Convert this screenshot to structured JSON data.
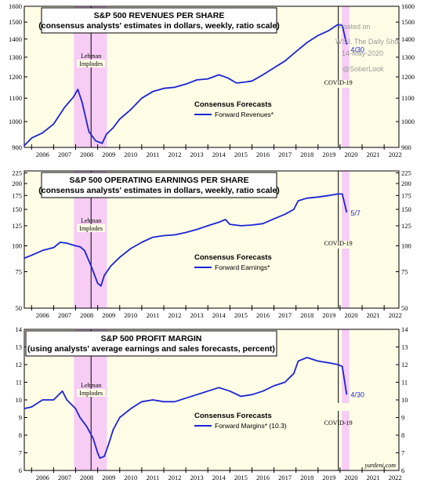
{
  "watermark": {
    "lines": [
      "Posted on",
      "WSJ. The Daily Shot",
      "14-May-2020",
      "@SoberLook"
    ]
  },
  "source": "yardeni.com",
  "colors": {
    "panel_bg": "#fffde6",
    "recession": "#f7cdf5",
    "line": "#1b24d6",
    "axis": "#000000"
  },
  "chart_data": [
    {
      "type": "line",
      "title": "S&P 500 REVENUES PER SHARE",
      "subtitle": "(consensus analysts' estimates in dollars, weekly, ratio scale)",
      "x_ticks": [
        "2006",
        "2007",
        "2008",
        "2009",
        "2010",
        "2011",
        "2012",
        "2013",
        "2014",
        "2015",
        "2016",
        "2017",
        "2018",
        "2019",
        "2020",
        "2021",
        "2022"
      ],
      "y_ticks": [
        900,
        1000,
        1100,
        1200,
        1300,
        1400,
        1500,
        1600
      ],
      "ylim": [
        900,
        1600
      ],
      "yscale": "log",
      "legend": {
        "heading": "Consensus Forecasts",
        "series": "Forward Revenues*"
      },
      "annotations": [
        "Lehman",
        "Implodes",
        "COVID-19"
      ],
      "end_label": "4/30",
      "series": [
        {
          "name": "Forward Revenues*",
          "x": [
            2005.65,
            2006.0,
            2006.5,
            2007.0,
            2007.5,
            2007.9,
            2008.1,
            2008.3,
            2008.6,
            2008.9,
            2009.2,
            2009.4,
            2009.7,
            2010.0,
            2010.5,
            2011.0,
            2011.5,
            2012.0,
            2012.5,
            2013.0,
            2013.5,
            2014.0,
            2014.5,
            2014.9,
            2015.3,
            2015.7,
            2016.0,
            2016.5,
            2017.0,
            2017.5,
            2018.0,
            2018.5,
            2019.0,
            2019.5,
            2019.9,
            2020.1,
            2020.3
          ],
          "y": [
            905,
            935,
            955,
            990,
            1060,
            1105,
            1140,
            1080,
            960,
            925,
            915,
            950,
            975,
            1010,
            1050,
            1100,
            1130,
            1145,
            1150,
            1165,
            1185,
            1190,
            1210,
            1195,
            1170,
            1175,
            1180,
            1210,
            1245,
            1280,
            1330,
            1380,
            1420,
            1450,
            1485,
            1480,
            1370
          ]
        }
      ]
    },
    {
      "type": "line",
      "title": "S&P 500 OPERATING EARNINGS PER SHARE",
      "subtitle": "(consensus analysts' estimates in dollars, weekly, ratio scale)",
      "x_ticks": [
        "2006",
        "2007",
        "2008",
        "2009",
        "2010",
        "2011",
        "2012",
        "2013",
        "2014",
        "2015",
        "2016",
        "2017",
        "2018",
        "2019",
        "2020",
        "2021",
        "2022"
      ],
      "y_ticks": [
        50,
        75,
        100,
        125,
        150,
        175,
        200,
        225
      ],
      "ylim": [
        50,
        230
      ],
      "yscale": "log",
      "legend": {
        "heading": "Consensus Forecasts",
        "series": "Forward Earnings*"
      },
      "annotations": [
        "Lehman",
        "Implodes",
        "COVID-19"
      ],
      "end_label": "5/7",
      "series": [
        {
          "name": "Forward Earnings*",
          "x": [
            2005.65,
            2006.0,
            2006.5,
            2007.0,
            2007.3,
            2007.6,
            2008.0,
            2008.2,
            2008.4,
            2008.7,
            2009.0,
            2009.15,
            2009.3,
            2009.6,
            2010.0,
            2010.5,
            2011.0,
            2011.5,
            2012.0,
            2012.5,
            2013.0,
            2013.5,
            2014.0,
            2014.5,
            2014.8,
            2015.0,
            2015.5,
            2016.0,
            2016.5,
            2017.0,
            2017.5,
            2017.9,
            2018.1,
            2018.5,
            2019.0,
            2019.5,
            2019.9,
            2020.1,
            2020.3
          ],
          "y": [
            87,
            90,
            95,
            98,
            104,
            103,
            100,
            99,
            95,
            80,
            66,
            64,
            72,
            80,
            88,
            97,
            104,
            110,
            112,
            113,
            116,
            120,
            125,
            130,
            134,
            127,
            125,
            126,
            128,
            135,
            142,
            150,
            165,
            170,
            172,
            175,
            178,
            178,
            145
          ]
        }
      ]
    },
    {
      "type": "line",
      "title": "S&P 500 PROFIT MARGIN",
      "subtitle": "(using analysts' average earnings and sales forecasts, percent)",
      "x_ticks": [
        "2006",
        "2007",
        "2008",
        "2009",
        "2010",
        "2011",
        "2012",
        "2013",
        "2014",
        "2015",
        "2016",
        "2017",
        "2018",
        "2019",
        "2020",
        "2021",
        "2022"
      ],
      "y_ticks": [
        6,
        7,
        8,
        9,
        10,
        11,
        12,
        13,
        14
      ],
      "ylim": [
        6,
        14
      ],
      "yscale": "linear",
      "legend": {
        "heading": "Consensus Forecasts",
        "series": "Forward Margins* (10.3)"
      },
      "annotations": [
        "Lehman",
        "Implodes",
        "COVID-19"
      ],
      "end_label": "4/30",
      "series": [
        {
          "name": "Forward Margins* (10.3)",
          "x": [
            2005.65,
            2006.0,
            2006.5,
            2007.0,
            2007.4,
            2007.6,
            2008.0,
            2008.2,
            2008.5,
            2008.8,
            2009.0,
            2009.1,
            2009.3,
            2009.5,
            2009.7,
            2010.0,
            2010.5,
            2011.0,
            2011.5,
            2012.0,
            2012.5,
            2013.0,
            2013.5,
            2014.0,
            2014.5,
            2015.0,
            2015.5,
            2016.0,
            2016.5,
            2017.0,
            2017.5,
            2017.9,
            2018.1,
            2018.5,
            2019.0,
            2019.5,
            2019.9,
            2020.1,
            2020.3
          ],
          "y": [
            9.5,
            9.6,
            10.0,
            10.0,
            10.5,
            10.0,
            9.5,
            9.0,
            8.5,
            7.8,
            7.0,
            6.7,
            6.8,
            7.5,
            8.3,
            9.0,
            9.5,
            9.9,
            10.0,
            9.9,
            9.9,
            10.1,
            10.3,
            10.5,
            10.7,
            10.5,
            10.2,
            10.3,
            10.5,
            10.8,
            11.0,
            11.5,
            12.2,
            12.4,
            12.2,
            12.1,
            12.0,
            11.9,
            10.3
          ]
        }
      ]
    }
  ]
}
